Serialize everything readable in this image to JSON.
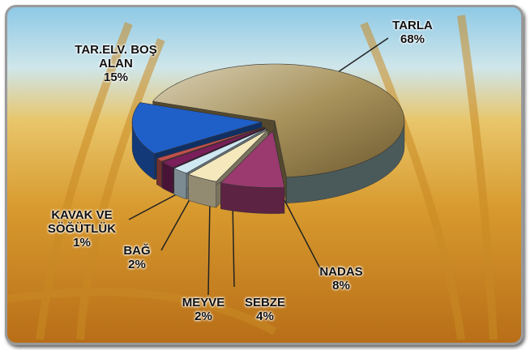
{
  "chart_data": {
    "type": "pie",
    "categories": [
      "TARLA",
      "NADAS",
      "SEBZE",
      "MEYVE",
      "BAĞ",
      "KAVAK VE SÖĞÜTLÜK",
      "TAR.ELV. BOŞ ALAN"
    ],
    "values": [
      68,
      8,
      4,
      2,
      2,
      1,
      15
    ],
    "value_labels": [
      "68%",
      "8%",
      "4%",
      "2%",
      "2%",
      "1%",
      "15%"
    ],
    "colors": [
      "#a8925c",
      "#9b3a6e",
      "#f4e8bc",
      "#cfe8f2",
      "#7a1f5a",
      "#c0504d",
      "#1f5fc8"
    ]
  }
}
